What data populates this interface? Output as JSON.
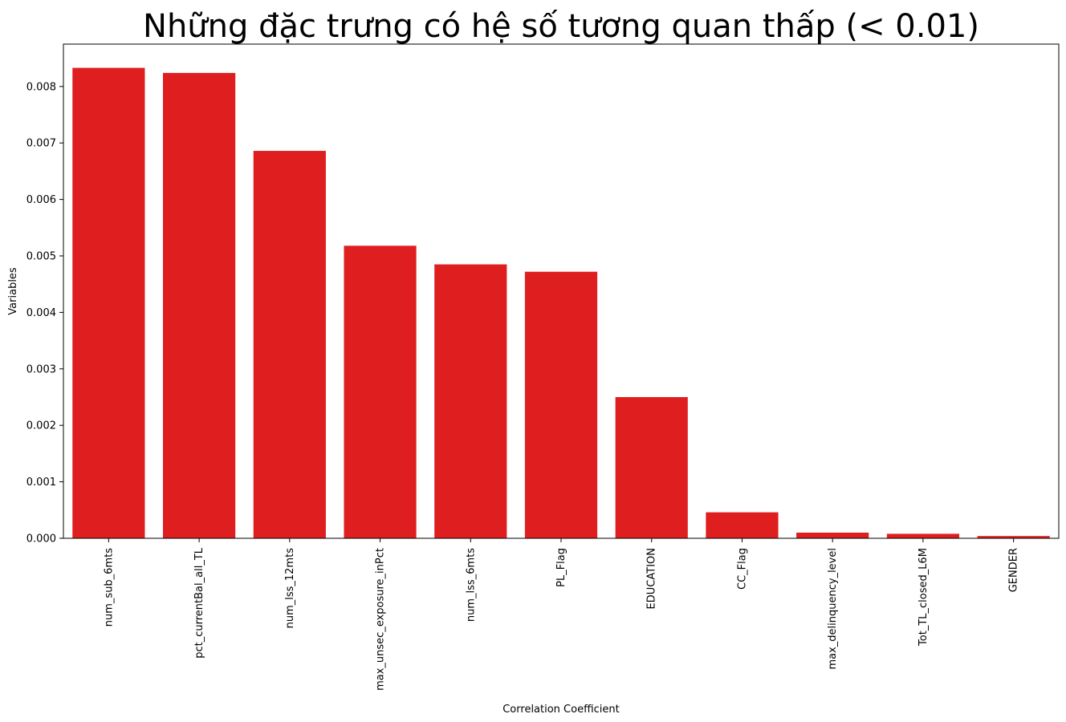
{
  "chart_data": {
    "type": "bar",
    "title": "Những đặc trưng có hệ số tương quan thấp (< 0.01)",
    "xlabel": "Correlation Coefficient",
    "ylabel": "Variables",
    "categories": [
      "num_sub_6mts",
      "pct_currentBal_all_TL",
      "num_lss_12mts",
      "max_unsec_exposure_inPct",
      "num_lss_6mts",
      "PL_Flag",
      "EDUCATION",
      "CC_Flag",
      "max_delinquency_level",
      "Tot_TL_closed_L6M",
      "GENDER"
    ],
    "values": [
      0.00833,
      0.00824,
      0.00686,
      0.00518,
      0.00485,
      0.00472,
      0.0025,
      0.00046,
      0.0001,
      8e-05,
      4e-05
    ],
    "yticks": [
      "0.000",
      "0.001",
      "0.002",
      "0.003",
      "0.004",
      "0.005",
      "0.006",
      "0.007",
      "0.008"
    ],
    "ylim": [
      0,
      0.00875
    ],
    "grid": false,
    "bar_color": "#df1f1f"
  }
}
